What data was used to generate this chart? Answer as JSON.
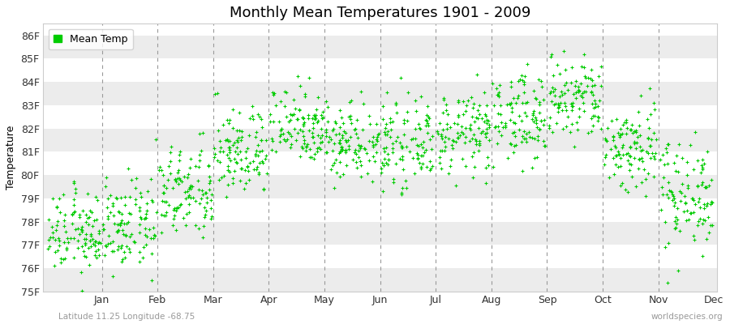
{
  "title": "Monthly Mean Temperatures 1901 - 2009",
  "ylabel": "Temperature",
  "xlabel_labels": [
    "Jan",
    "Feb",
    "Mar",
    "Apr",
    "May",
    "Jun",
    "Jul",
    "Aug",
    "Sep",
    "Oct",
    "Nov",
    "Dec"
  ],
  "ytick_labels": [
    "75F",
    "76F",
    "77F",
    "78F",
    "79F",
    "80F",
    "81F",
    "82F",
    "83F",
    "84F",
    "85F",
    "86F"
  ],
  "ytick_values": [
    75,
    76,
    77,
    78,
    79,
    80,
    81,
    82,
    83,
    84,
    85,
    86
  ],
  "ylim": [
    75,
    86.5
  ],
  "dot_color": "#00cc00",
  "background_color": "#ffffff",
  "plot_bg_color": "#ffffff",
  "band_light": "#ececec",
  "band_dark": "#ffffff",
  "legend_label": "Mean Temp",
  "subtitle_left": "Latitude 11.25 Longitude -68.75",
  "subtitle_right": "worldspecies.org",
  "title_fontsize": 13,
  "label_fontsize": 9,
  "tick_fontsize": 9,
  "marker_size": 3.5,
  "n_years": 109,
  "monthly_means": [
    77.5,
    77.8,
    79.2,
    81.0,
    82.2,
    81.5,
    81.3,
    81.8,
    82.5,
    83.2,
    81.2,
    79.2
  ],
  "monthly_stds": [
    0.85,
    0.95,
    1.0,
    0.95,
    0.85,
    0.85,
    0.85,
    0.85,
    0.95,
    0.95,
    1.0,
    1.2
  ]
}
